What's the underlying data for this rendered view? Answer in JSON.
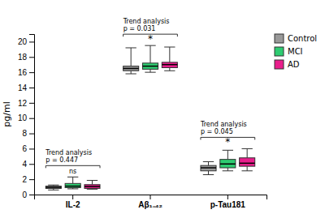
{
  "chart_data": {
    "type": "box",
    "categories": [
      "IL-2",
      "Aβ₁₋₄₂",
      "p-Tau181"
    ],
    "series": [
      {
        "name": "Control",
        "color": "#999999",
        "values": [
          {
            "med": 0.95,
            "q1": 0.8,
            "q3": 1.1,
            "whislo": 0.6,
            "whishi": 1.25
          },
          {
            "med": 16.5,
            "q1": 16.2,
            "q3": 16.8,
            "whislo": 15.8,
            "whishi": 19.2
          },
          {
            "med": 3.5,
            "q1": 3.1,
            "q3": 3.8,
            "whislo": 2.6,
            "whishi": 4.3
          }
        ]
      },
      {
        "name": "MCI",
        "color": "#2ecc71",
        "values": [
          {
            "med": 1.1,
            "q1": 0.9,
            "q3": 1.45,
            "whislo": 0.75,
            "whishi": 2.3
          },
          {
            "med": 16.8,
            "q1": 16.4,
            "q3": 17.2,
            "whislo": 16.0,
            "whishi": 19.5
          },
          {
            "med": 4.0,
            "q1": 3.5,
            "q3": 4.6,
            "whislo": 3.1,
            "whishi": 5.8
          }
        ]
      },
      {
        "name": "AD",
        "color": "#e91e8c",
        "values": [
          {
            "med": 1.05,
            "q1": 0.8,
            "q3": 1.3,
            "whislo": 0.7,
            "whishi": 1.85
          },
          {
            "med": 17.0,
            "q1": 16.6,
            "q3": 17.3,
            "whislo": 16.2,
            "whishi": 19.3
          },
          {
            "med": 4.1,
            "q1": 3.7,
            "q3": 4.8,
            "whislo": 3.1,
            "whishi": 6.0
          }
        ]
      }
    ],
    "ylabel": "pg/ml",
    "ylim": [
      0,
      21
    ],
    "yticks": [
      0,
      2,
      4,
      6,
      8,
      10,
      12,
      14,
      16,
      18,
      20
    ],
    "grid": false,
    "legend": "upper right",
    "annotations": [
      {
        "text": "Trend analysis\np = 0.447",
        "sig": "ns"
      },
      {
        "text": "Trend analysis\np = 0.031",
        "sig": "*"
      },
      {
        "text": "Trend analysis\np = 0.045",
        "sig": "*"
      }
    ]
  }
}
